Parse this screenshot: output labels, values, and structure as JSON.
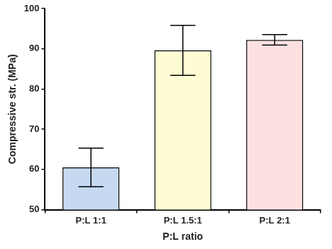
{
  "chart_data": {
    "type": "bar",
    "x_label": "P:L ratio",
    "y_label": "Compressive str. (MPa)",
    "categories": [
      "P:L 1:1",
      "P:L 1.5:1",
      "P:L 2:1"
    ],
    "values": [
      60.5,
      89.6,
      92.2
    ],
    "errors": [
      4.8,
      6.2,
      1.3
    ],
    "colors": [
      "#c5d9f1",
      "#fdfcd2",
      "#fde1e1"
    ],
    "ylim": [
      50,
      100
    ],
    "yticks": [
      50,
      60,
      70,
      80,
      90,
      100
    ],
    "grid": false
  }
}
